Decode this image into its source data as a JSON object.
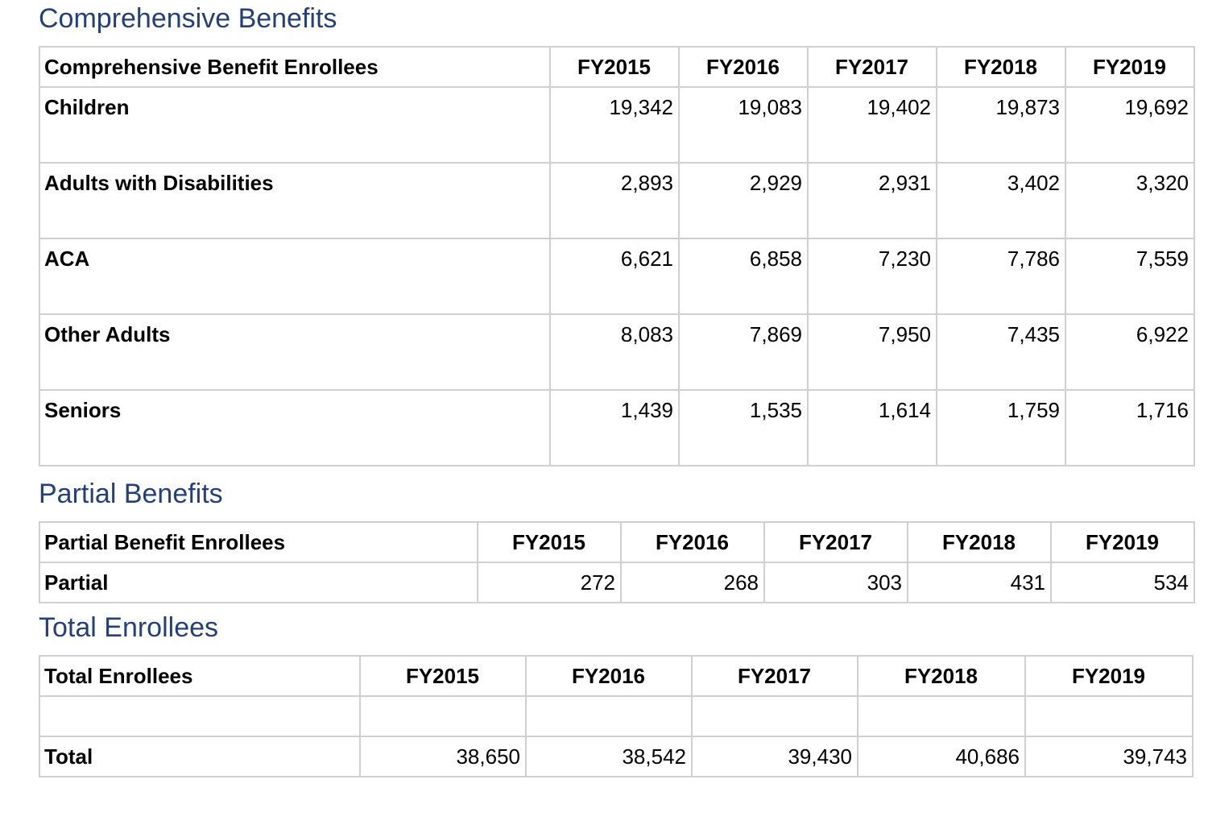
{
  "comprehensive": {
    "title": "Comprehensive Benefits",
    "header": [
      "Comprehensive Benefit Enrollees",
      "FY2015",
      "FY2016",
      "FY2017",
      "FY2018",
      "FY2019"
    ],
    "rows": [
      {
        "label": "Children",
        "values": [
          "19,342",
          "19,083",
          "19,402",
          "19,873",
          "19,692"
        ]
      },
      {
        "label": "Adults with Disabilities",
        "values": [
          "2,893",
          "2,929",
          "2,931",
          "3,402",
          "3,320"
        ]
      },
      {
        "label": "ACA",
        "values": [
          "6,621",
          "6,858",
          "7,230",
          "7,786",
          "7,559"
        ]
      },
      {
        "label": "Other Adults",
        "values": [
          "8,083",
          "7,869",
          "7,950",
          "7,435",
          "6,922"
        ]
      },
      {
        "label": "Seniors",
        "values": [
          "1,439",
          "1,535",
          "1,614",
          "1,759",
          "1,716"
        ]
      }
    ]
  },
  "partial": {
    "title": "Partial Benefits",
    "header": [
      "Partial Benefit Enrollees",
      "FY2015",
      "FY2016",
      "FY2017",
      "FY2018",
      "FY2019"
    ],
    "rows": [
      {
        "label": "Partial",
        "values": [
          "272",
          "268",
          "303",
          "431",
          "534"
        ]
      }
    ]
  },
  "total": {
    "title": "Total Enrollees",
    "header": [
      "Total Enrollees",
      "FY2015",
      "FY2016",
      "FY2017",
      "FY2018",
      "FY2019"
    ],
    "rows": [
      {
        "label": "",
        "values": [
          "",
          "",
          "",
          "",
          ""
        ]
      },
      {
        "label": "Total",
        "values": [
          "38,650",
          "38,542",
          "39,430",
          "40,686",
          "39,743"
        ]
      }
    ]
  },
  "colors": {
    "heading": "#243f7a",
    "border": "#d0d0d0"
  }
}
